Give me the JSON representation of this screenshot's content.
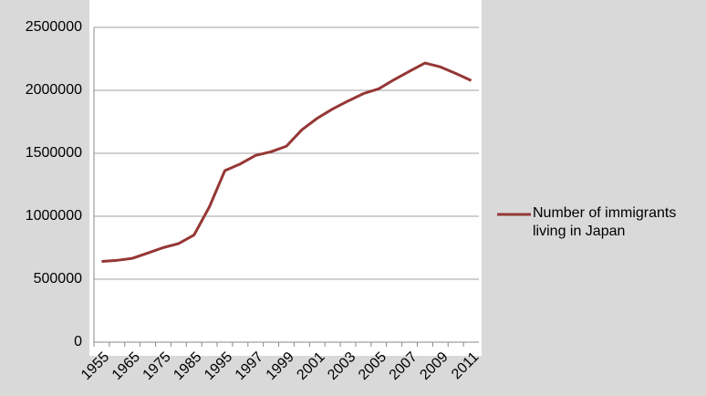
{
  "chart_data": {
    "type": "line",
    "categories": [
      "1955",
      null,
      "1965",
      null,
      "1975",
      null,
      "1985",
      null,
      "1995",
      null,
      "1997",
      null,
      "1999",
      null,
      "2001",
      null,
      "2003",
      null,
      "2005",
      null,
      "2007",
      null,
      "2009",
      null,
      "2011"
    ],
    "series": [
      {
        "name": "Number of immigrants living in Japan",
        "color": "#953735",
        "values": [
          641000,
          650000,
          666000,
          708000,
          751000,
          783000,
          851000,
          1075000,
          1362000,
          1415000,
          1483000,
          1512000,
          1556000,
          1686000,
          1778000,
          1852000,
          1915000,
          1974000,
          2012000,
          2085000,
          2152000,
          2217000,
          2186000,
          2134000,
          2078000
        ]
      }
    ],
    "ylim": [
      0,
      2500000
    ],
    "yticks": [
      0,
      500000,
      1000000,
      1500000,
      2000000,
      2500000
    ],
    "grid": true,
    "legend": "right"
  }
}
